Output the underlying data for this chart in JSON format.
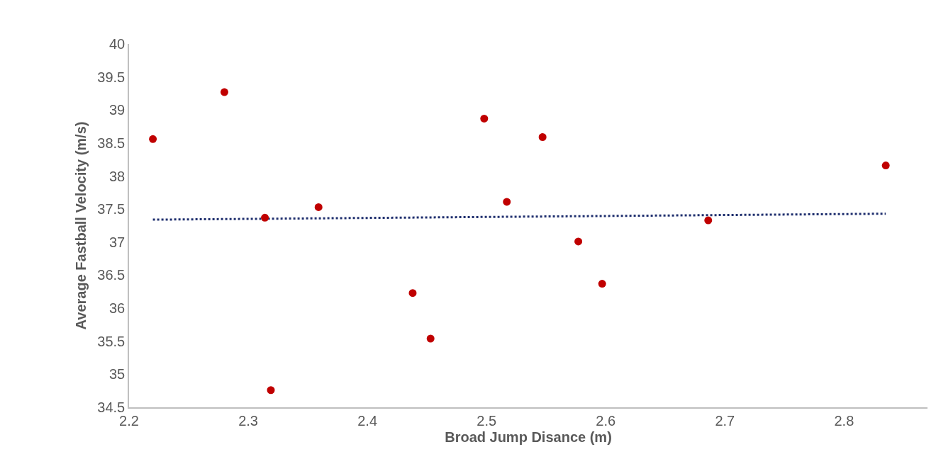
{
  "chart_data": {
    "type": "scatter",
    "xlabel": "Broad Jump Disance (m)",
    "ylabel": "Average Fastball Velocity (m/s)",
    "xlim": [
      2.2,
      2.87
    ],
    "xticks": [
      2.2,
      2.3,
      2.4,
      2.5,
      2.6,
      2.7,
      2.8
    ],
    "ylim": [
      34.5,
      40
    ],
    "yticks": [
      34.5,
      35,
      35.5,
      36,
      36.5,
      37,
      37.5,
      38,
      38.5,
      39,
      39.5,
      40
    ],
    "grid": false,
    "marker": "circle",
    "series": [
      {
        "color": "#c00000",
        "x": [
          2.22,
          2.28,
          2.314,
          2.319,
          2.359,
          2.438,
          2.453,
          2.498,
          2.517,
          2.547,
          2.577,
          2.597,
          2.686,
          2.835
        ],
        "values": [
          38.56,
          39.27,
          37.37,
          34.76,
          37.53,
          36.23,
          35.54,
          38.87,
          37.61,
          38.59,
          37.01,
          36.37,
          37.33,
          38.16
        ]
      },
      {
        "type": "line",
        "color": "#1f2f6e",
        "line_style": "dotted",
        "marker": "none",
        "x": [
          2.22,
          2.835
        ],
        "values": [
          37.34,
          37.43
        ]
      }
    ]
  }
}
